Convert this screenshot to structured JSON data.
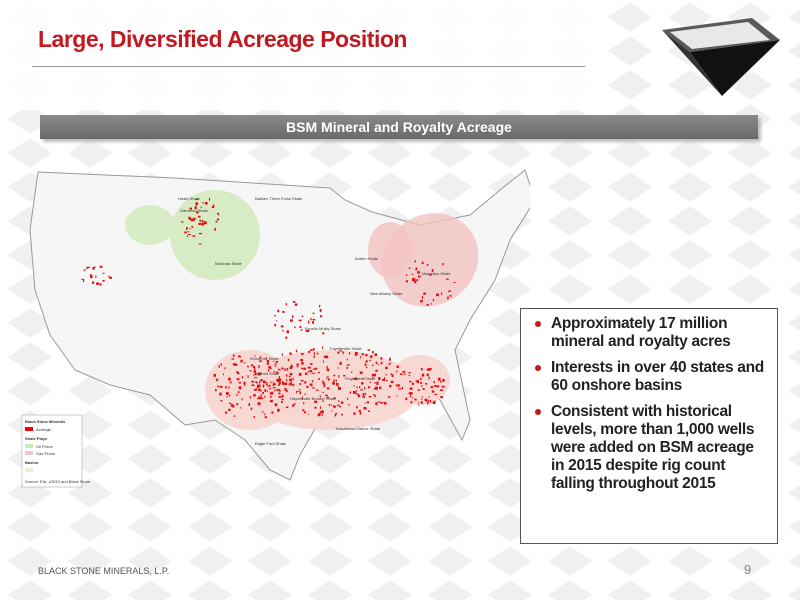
{
  "header": {
    "title": "Large, Diversified Acreage Position"
  },
  "banner": "BSM Mineral and Royalty Acreage",
  "map": {
    "legend": {
      "title": "Black Stone Minerals",
      "acreage": "Acreage",
      "shale_title": "Shale Plays",
      "oil": "Oil Prone",
      "gas": "Gas Prone",
      "basins": "Basins",
      "source": "Source: EIA, USGS and Black Stone"
    },
    "labels": [
      "Bakken Three Forks Shale",
      "Heath Shale",
      "Gammon Shale",
      "Niobrara Shale",
      "Excello Mulky Shale",
      "Fayetteville Shale",
      "Barnett Shale",
      "Eagle Ford Shale",
      "Haynesville Bossier Shale",
      "Tuscaloosa Marine Shale",
      "Floyd Neal Shale",
      "Marcellus Shale",
      "Antrim Shale",
      "New Albany Shale",
      "Woodford Shale"
    ]
  },
  "bullets": [
    "Approximately 17 million mineral and royalty acres",
    "Interests in over 40 states and 60 onshore basins",
    "Consistent with historical levels, more than 1,000 wells were added on BSM acreage in 2015 despite rig count falling throughout 2015"
  ],
  "footer": {
    "company": "BLACK STONE MINERALS, L.P.",
    "page": "9"
  }
}
